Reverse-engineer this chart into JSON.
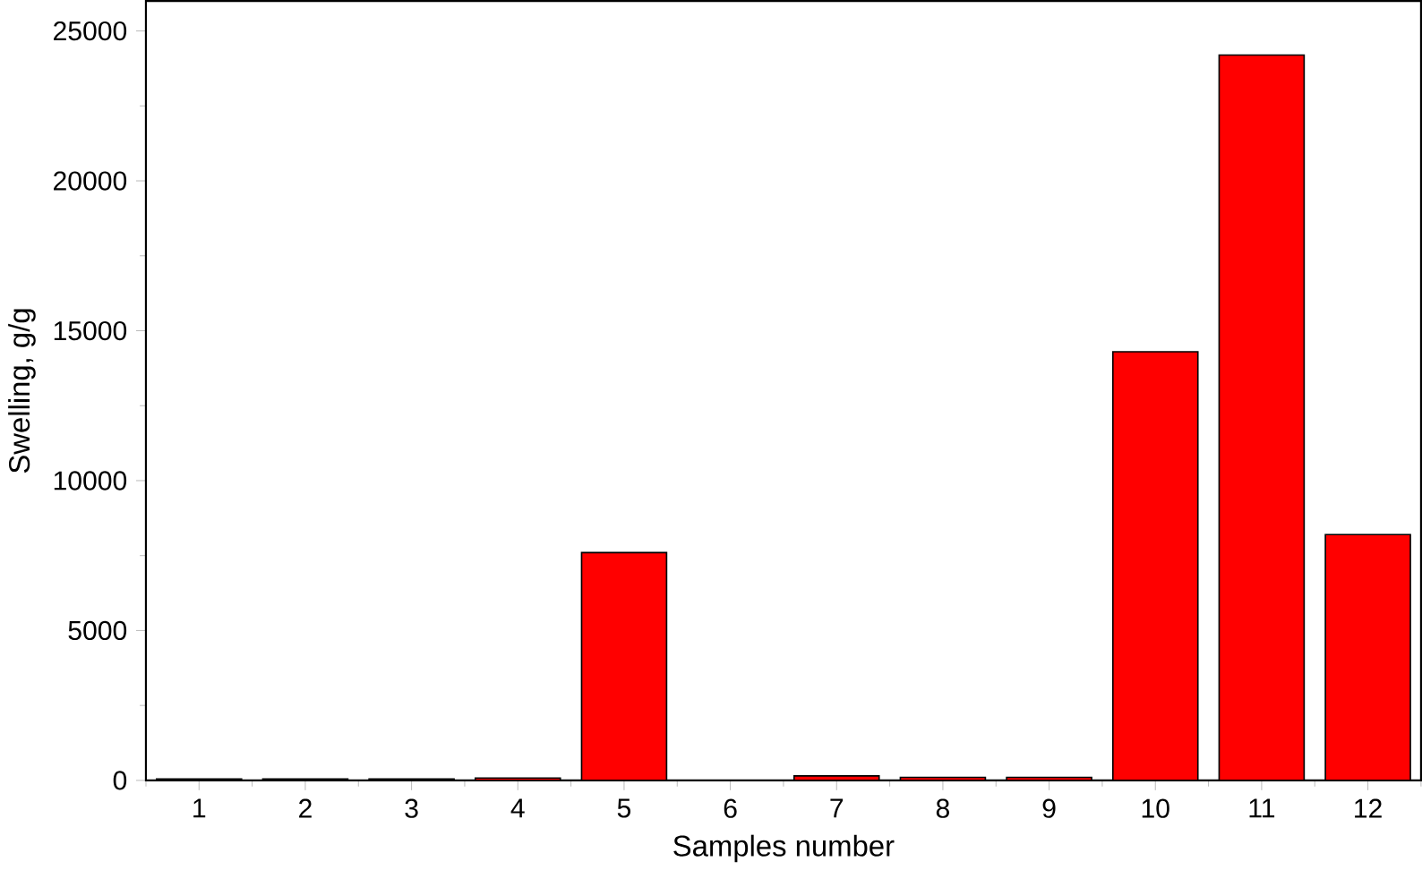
{
  "chart_data": {
    "type": "bar",
    "xlabel": "Samples number",
    "ylabel": "Swelling, g/g",
    "categories": [
      "1",
      "2",
      "3",
      "4",
      "5",
      "6",
      "7",
      "8",
      "9",
      "10",
      "11",
      "12"
    ],
    "values": [
      50,
      50,
      50,
      80,
      7600,
      null,
      150,
      100,
      100,
      14300,
      24200,
      8200
    ],
    "color": "#ff0000",
    "ylim": [
      0,
      26000
    ],
    "yticks": [
      0,
      5000,
      10000,
      15000,
      20000,
      25000
    ],
    "grid": false
  }
}
